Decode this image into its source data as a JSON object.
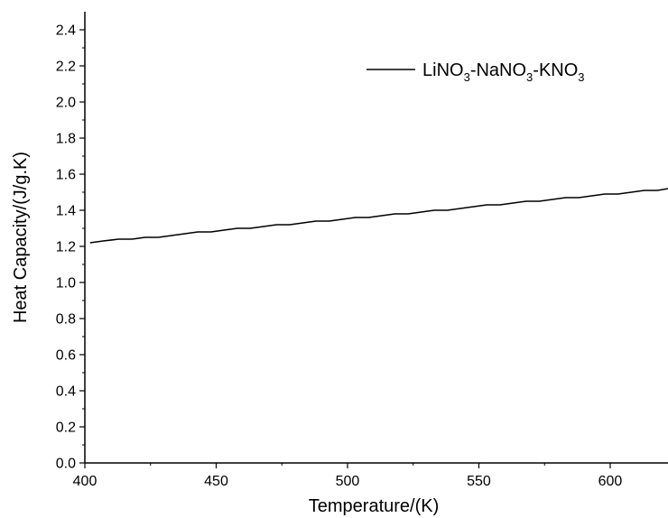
{
  "chart_data": {
    "type": "line",
    "xlabel": "Temperature/(K)",
    "ylabel": "Heat Capacity/(J/g.K)",
    "xlim": [
      400,
      622
    ],
    "ylim": [
      0.0,
      2.5
    ],
    "x_ticks": [
      "400",
      "450",
      "500",
      "550",
      "600"
    ],
    "y_ticks": [
      "0.0",
      "0.2",
      "0.4",
      "0.6",
      "0.8",
      "1.0",
      "1.2",
      "1.4",
      "1.6",
      "1.8",
      "2.0",
      "2.2",
      "2.4"
    ],
    "legend_position": "top-right",
    "series": [
      {
        "name": "LiNO3-NaNO3-KNO3",
        "name_parts": [
          "LiNO",
          "3",
          "-NaNO",
          "3",
          "-KNO",
          "3"
        ],
        "color": "#000000",
        "x": [
          402,
          407,
          413,
          418,
          423,
          428,
          433,
          438,
          443,
          448,
          453,
          458,
          463,
          468,
          473,
          478,
          483,
          488,
          493,
          498,
          503,
          508,
          513,
          518,
          523,
          528,
          533,
          538,
          543,
          548,
          553,
          558,
          563,
          568,
          573,
          578,
          583,
          588,
          593,
          598,
          603,
          608,
          613,
          618,
          622
        ],
        "y": [
          1.22,
          1.23,
          1.24,
          1.24,
          1.25,
          1.25,
          1.26,
          1.27,
          1.28,
          1.28,
          1.29,
          1.3,
          1.3,
          1.31,
          1.32,
          1.32,
          1.33,
          1.34,
          1.34,
          1.35,
          1.36,
          1.36,
          1.37,
          1.38,
          1.38,
          1.39,
          1.4,
          1.4,
          1.41,
          1.42,
          1.43,
          1.43,
          1.44,
          1.45,
          1.45,
          1.46,
          1.47,
          1.47,
          1.48,
          1.49,
          1.49,
          1.5,
          1.51,
          1.51,
          1.52
        ]
      }
    ]
  }
}
